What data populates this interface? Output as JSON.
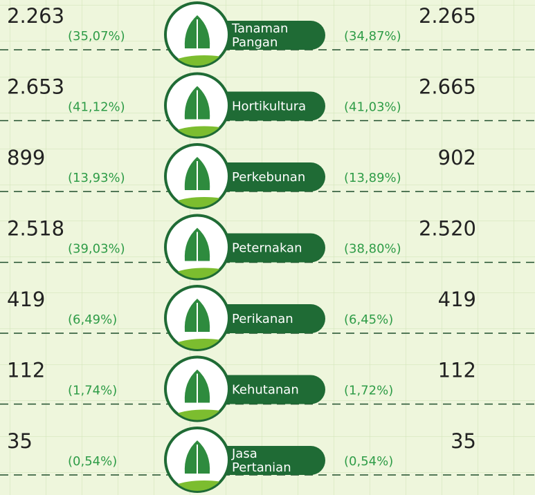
{
  "rows": [
    {
      "left": "2.263",
      "left_pct": "(35,07%)",
      "label": [
        "Tanaman",
        "Pangan"
      ],
      "right_pct": "(34,87%)",
      "right": "2.265"
    },
    {
      "left": "2.653",
      "left_pct": "(41,12%)",
      "label": [
        "Hortikultura"
      ],
      "right_pct": "(41,03%)",
      "right": "2.665"
    },
    {
      "left": "899",
      "left_pct": "(13,93%)",
      "label": [
        "Perkebunan"
      ],
      "right_pct": "(13,89%)",
      "right": "902"
    },
    {
      "left": "2.518",
      "left_pct": "(39,03%)",
      "label": [
        "Peternakan"
      ],
      "right_pct": "(38,80%)",
      "right": "2.520"
    },
    {
      "left": "419",
      "left_pct": "(6,49%)",
      "label": [
        "Perikanan"
      ],
      "right_pct": "(6,45%)",
      "right": "419"
    },
    {
      "left": "112",
      "left_pct": "(1,74%)",
      "label": [
        "Kehutanan"
      ],
      "right_pct": "(1,72%)",
      "right": "112"
    },
    {
      "left": "35",
      "left_pct": "(0,54%)",
      "label": [
        "Jasa",
        "Pertanian"
      ],
      "right_pct": "(0,54%)",
      "right": "35"
    }
  ]
}
